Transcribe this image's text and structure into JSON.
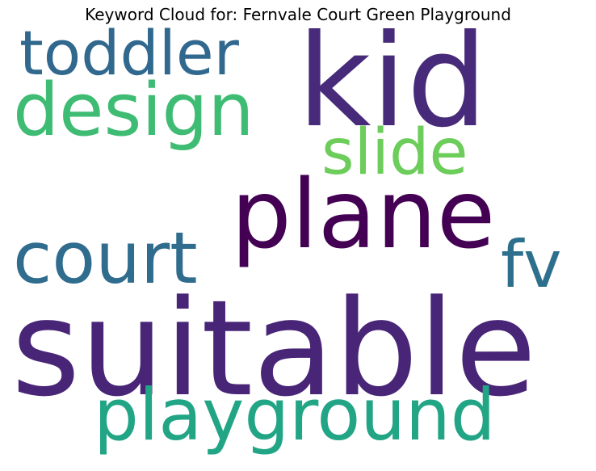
{
  "title": "Keyword Cloud for: Fernvale Court Green Playground",
  "words": [
    {
      "id": "kid",
      "text": "kid",
      "color": "#472b7a"
    },
    {
      "id": "toddler",
      "text": "toddler",
      "color": "#31688e"
    },
    {
      "id": "design",
      "text": "design",
      "color": "#3fbc73"
    },
    {
      "id": "slide",
      "text": "slide",
      "color": "#6ccd5a"
    },
    {
      "id": "plane",
      "text": "plane",
      "color": "#440154"
    },
    {
      "id": "court",
      "text": "court",
      "color": "#2f6c8e"
    },
    {
      "id": "fv",
      "text": "fv",
      "color": "#2d708e"
    },
    {
      "id": "suitable",
      "text": "suitable",
      "color": "#482576"
    },
    {
      "id": "playground",
      "text": "playground",
      "color": "#21a585"
    }
  ]
}
